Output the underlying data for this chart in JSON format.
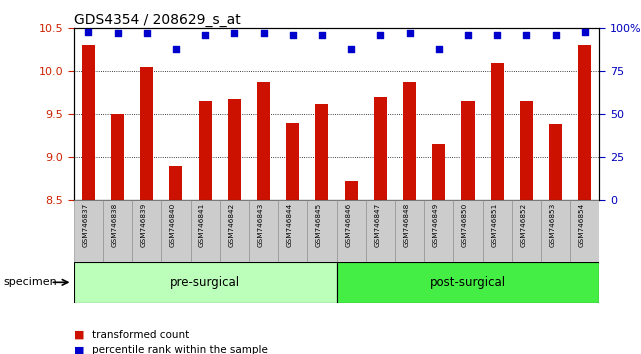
{
  "title": "GDS4354 / 208629_s_at",
  "samples": [
    "GSM746837",
    "GSM746838",
    "GSM746839",
    "GSM746840",
    "GSM746841",
    "GSM746842",
    "GSM746843",
    "GSM746844",
    "GSM746845",
    "GSM746846",
    "GSM746847",
    "GSM746848",
    "GSM746849",
    "GSM746850",
    "GSM746851",
    "GSM746852",
    "GSM746853",
    "GSM746854"
  ],
  "bar_values": [
    10.3,
    9.5,
    10.05,
    8.9,
    9.65,
    9.68,
    9.87,
    9.4,
    9.62,
    8.72,
    9.7,
    9.87,
    9.15,
    9.65,
    10.1,
    9.65,
    9.38,
    10.3
  ],
  "percentile_values": [
    98,
    97,
    97,
    88,
    96,
    97,
    97,
    96,
    96,
    88,
    96,
    97,
    88,
    96,
    96,
    96,
    96,
    98
  ],
  "bar_color": "#cc1100",
  "dot_color": "#0000cc",
  "ylim_left": [
    8.5,
    10.5
  ],
  "ylim_right": [
    0,
    100
  ],
  "yticks_left": [
    8.5,
    9.0,
    9.5,
    10.0,
    10.5
  ],
  "yticks_right": [
    0,
    25,
    50,
    75,
    100
  ],
  "ytick_labels_right": [
    "0",
    "25",
    "50",
    "75",
    "100%"
  ],
  "group1_label": "pre-surgical",
  "group2_label": "post-surgical",
  "group1_count": 9,
  "group2_count": 9,
  "specimen_label": "specimen",
  "legend1": "transformed count",
  "legend2": "percentile rank within the sample",
  "bar_color_hex": "#cc2200",
  "dot_color_hex": "#0000bb",
  "left_axis_color": "#cc2200",
  "right_axis_color": "#0000bb",
  "bg_xticklabels": "#cccccc",
  "bg_group1": "#bbffbb",
  "bg_group2": "#44ee44",
  "title_fontsize": 10,
  "tick_fontsize": 8,
  "label_fontsize": 6
}
